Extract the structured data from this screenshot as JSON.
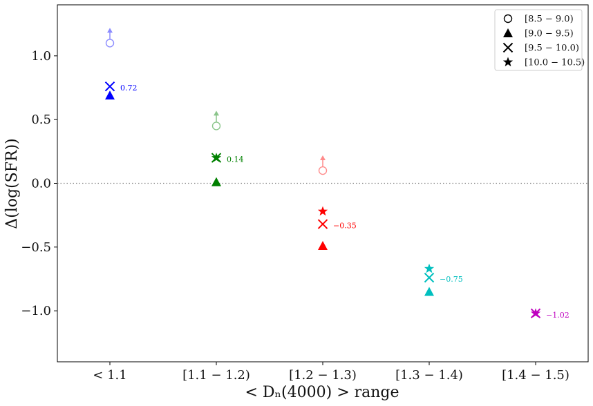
{
  "chart_data": {
    "type": "scatter",
    "xlabel": "< Dₙ(4000) >  range",
    "ylabel": "Δ(log(SFR))",
    "categories": [
      "< 1.1",
      "[1.1 − 1.2)",
      "[1.2 − 1.3)",
      "[1.3 − 1.4)",
      "[1.4 − 1.5)"
    ],
    "category_colors": [
      "#0000ff",
      "#008000",
      "#ff0000",
      "#00bfbf",
      "#bf00bf"
    ],
    "ylim": [
      -1.4,
      1.4
    ],
    "yticks": [
      -1.0,
      -0.5,
      0.0,
      0.5,
      1.0
    ],
    "ytick_labels": [
      "−1.0",
      "−0.5",
      "0.0",
      "0.5",
      "1.0"
    ],
    "reference_line": {
      "y": 0.0,
      "style": "dotted",
      "color": "#888888"
    },
    "legend": {
      "position": "top-right",
      "entries": [
        {
          "marker": "circle-open",
          "label": "[8.5 − 9.0)"
        },
        {
          "marker": "triangle",
          "label": "[9.0 − 9.5)"
        },
        {
          "marker": "x",
          "label": "[9.5 − 10.0)"
        },
        {
          "marker": "star",
          "label": "[10.0 − 10.5)"
        }
      ]
    },
    "series": [
      {
        "marker": "circle-open",
        "lower_limit": true,
        "values": [
          1.1,
          0.45,
          0.1,
          null,
          null
        ]
      },
      {
        "marker": "triangle",
        "values": [
          0.69,
          0.01,
          -0.49,
          -0.85,
          null
        ]
      },
      {
        "marker": "x",
        "values": [
          0.76,
          0.2,
          -0.32,
          -0.74,
          -1.02
        ]
      },
      {
        "marker": "star",
        "values": [
          null,
          0.2,
          -0.22,
          -0.67,
          -1.02
        ]
      }
    ],
    "annotations": [
      "0.72",
      "0.14",
      "−0.35",
      "−0.75",
      "−1.02"
    ]
  }
}
